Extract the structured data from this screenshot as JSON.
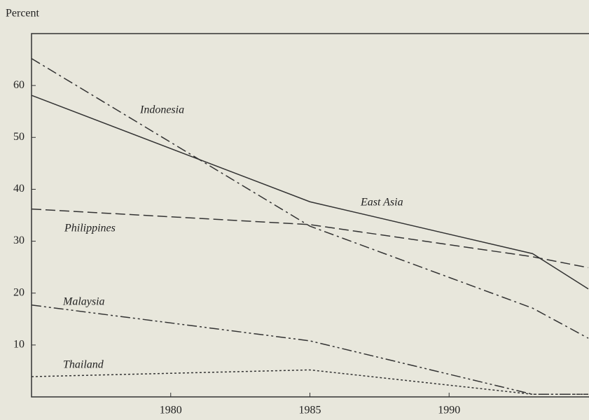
{
  "chart_data": {
    "type": "line",
    "y_label": "Percent",
    "x": [
      1975,
      1985,
      1993,
      1995
    ],
    "xlim": [
      1975,
      1995
    ],
    "xticks": [
      1980,
      1985,
      1990
    ],
    "ylim": [
      0,
      70
    ],
    "yticks": [
      10,
      20,
      30,
      40,
      50,
      60
    ],
    "series": [
      {
        "name": "Indonesia",
        "color": "#333333",
        "style": "dashdot",
        "values": [
          65.2,
          32.9,
          17.1,
          11.3
        ]
      },
      {
        "name": "East Asia",
        "color": "#333333",
        "style": "solid",
        "values": [
          58.1,
          37.6,
          27.6,
          20.8
        ]
      },
      {
        "name": "Philippines",
        "color": "#333333",
        "style": "dashed",
        "values": [
          36.2,
          33.2,
          27,
          24.9
        ]
      },
      {
        "name": "Malaysia",
        "color": "#333333",
        "style": "dashdotdot",
        "values": [
          17.7,
          10.8,
          0.5,
          0.5
        ]
      },
      {
        "name": "Thailand",
        "color": "#333333",
        "style": "dotted",
        "values": [
          3.9,
          5.2,
          0.5,
          0.5
        ]
      }
    ]
  }
}
